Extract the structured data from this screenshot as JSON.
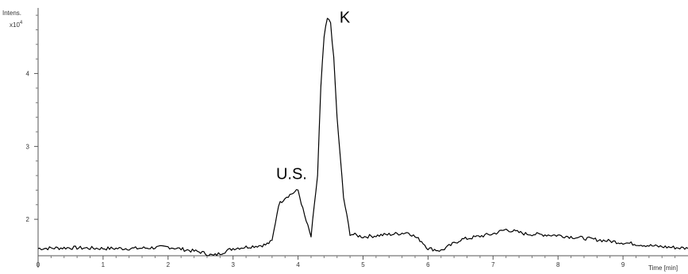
{
  "chart_data": {
    "type": "line",
    "y_unit_label": "Intens.",
    "y_multiplier_base": "x10",
    "y_multiplier_exp": "4",
    "x_unit_label": "Time [min]",
    "xlim": [
      0,
      10
    ],
    "ylim": [
      1.5,
      4.9
    ],
    "x_ticks": [
      "0",
      "1",
      "2",
      "3",
      "4",
      "5",
      "6",
      "7",
      "8",
      "9"
    ],
    "y_ticks": [
      "2",
      "3",
      "4"
    ],
    "annotations": [
      {
        "text": "U.S.",
        "x": 3.9,
        "y": 2.55
      },
      {
        "text": "K",
        "x": 4.72,
        "y": 4.7
      }
    ],
    "series": [
      {
        "x": [
          0,
          0.5,
          1.0,
          1.5,
          2.0,
          2.5,
          2.7,
          3.0,
          3.5,
          3.6,
          3.7,
          3.8,
          3.9,
          4.0,
          4.1,
          4.2,
          4.3,
          4.35,
          4.4,
          4.45,
          4.5,
          4.55,
          4.6,
          4.7,
          4.8,
          5.0,
          5.5,
          5.7,
          5.9,
          6.0,
          6.2,
          6.5,
          7.0,
          7.2,
          7.5,
          8.0,
          8.5,
          9.0,
          9.5,
          10.0
        ],
        "y": [
          1.6,
          1.61,
          1.6,
          1.6,
          1.62,
          1.55,
          1.5,
          1.6,
          1.65,
          1.7,
          2.2,
          2.3,
          2.35,
          2.4,
          2.05,
          1.76,
          2.6,
          3.8,
          4.5,
          4.75,
          4.7,
          4.2,
          3.4,
          2.3,
          1.8,
          1.76,
          1.8,
          1.82,
          1.7,
          1.6,
          1.57,
          1.72,
          1.8,
          1.86,
          1.8,
          1.78,
          1.73,
          1.68,
          1.63,
          1.6
        ]
      }
    ]
  }
}
